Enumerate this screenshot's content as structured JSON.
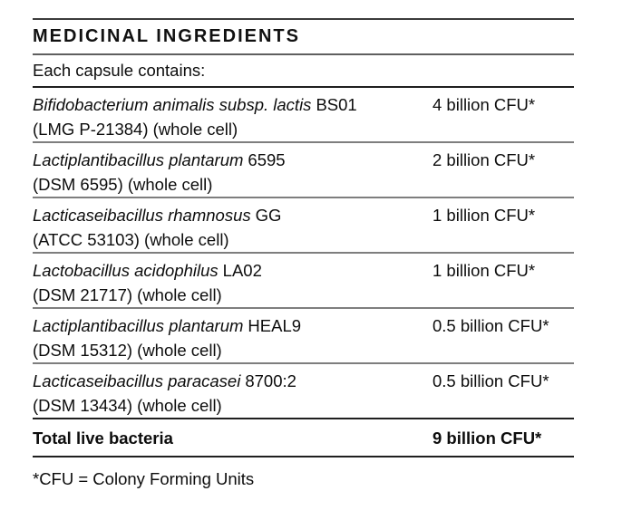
{
  "label": {
    "title": "MEDICINAL INGREDIENTS",
    "subtitle": "Each capsule contains:",
    "ingredients": [
      {
        "scientific_name": "Bifidobacterium animalis subsp. lactis",
        "strain": "BS01",
        "details": "(LMG P-21384) (whole cell)",
        "amount": "4 billion CFU*"
      },
      {
        "scientific_name": "Lactiplantibacillus plantarum",
        "strain": "6595",
        "details": "(DSM 6595) (whole cell)",
        "amount": "2 billion CFU*"
      },
      {
        "scientific_name": "Lacticaseibacillus rhamnosus",
        "strain": "GG",
        "details": "(ATCC 53103) (whole cell)",
        "amount": "1 billion CFU*"
      },
      {
        "scientific_name": "Lactobacillus acidophilus",
        "strain": "LA02",
        "details": "(DSM 21717) (whole cell)",
        "amount": "1 billion CFU*"
      },
      {
        "scientific_name": "Lactiplantibacillus plantarum",
        "strain": "HEAL9",
        "details": "(DSM 15312) (whole cell)",
        "amount": "0.5 billion CFU*"
      },
      {
        "scientific_name": "Lacticaseibacillus paracasei",
        "strain": "8700:2",
        "details": "(DSM 13434) (whole cell)",
        "amount": "0.5 billion CFU*"
      }
    ],
    "total_row": {
      "label": "Total live bacteria",
      "amount": "9 billion CFU*"
    },
    "footnote": "*CFU = Colony Forming Units"
  },
  "colors": {
    "background": "#ffffff",
    "text": "#0d0d0d",
    "rule_top": "#3c3c3c",
    "rule_mid": "#5f5f5f",
    "rule_dark": "#1f1f1f",
    "rule_row_separator": "#7e7e7e"
  }
}
